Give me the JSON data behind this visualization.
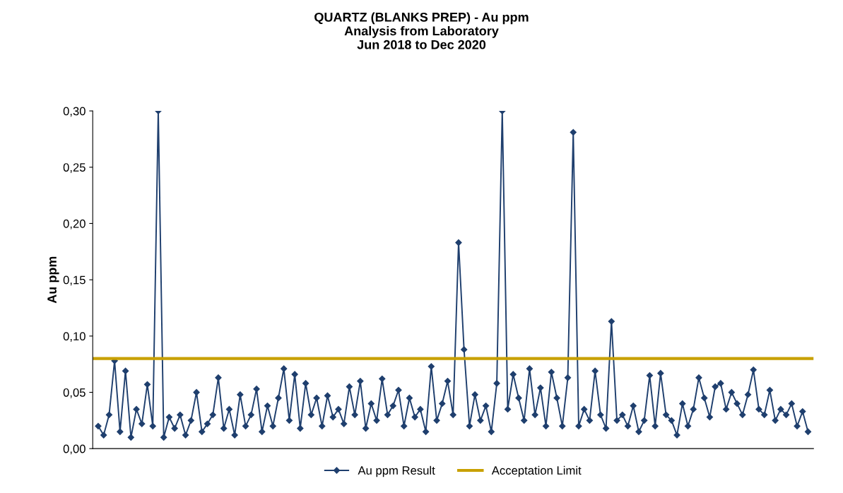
{
  "chart_data": {
    "type": "line",
    "title": "QUARTZ (BLANKS PREP) - Au ppm\nAnalysis from Laboratory\nJun 2018 to Dec 2020",
    "ylabel": "Au ppm",
    "categories": [
      null,
      null,
      null,
      null,
      null,
      null,
      null,
      null,
      null,
      null,
      null,
      null,
      null,
      null,
      null,
      null,
      null,
      null,
      null,
      null,
      null,
      null,
      null,
      null,
      null,
      null,
      null,
      null,
      null,
      null,
      null,
      null,
      null,
      null,
      null,
      null,
      null,
      null,
      null,
      null,
      null,
      null,
      null,
      null,
      null,
      null,
      null,
      null,
      null,
      null,
      null,
      null,
      null,
      null,
      null,
      null,
      null,
      null,
      null,
      null,
      null,
      null,
      null,
      null,
      null,
      null,
      null,
      null,
      null,
      null,
      null,
      null,
      null,
      null,
      null,
      null,
      null,
      null,
      null,
      null,
      null,
      null,
      null,
      null,
      null,
      null,
      null,
      null,
      null,
      null,
      null,
      null,
      null,
      null,
      null,
      null,
      null,
      null,
      null,
      null,
      null,
      null,
      null,
      null,
      null,
      null,
      null,
      null,
      null,
      null,
      null,
      null,
      null,
      null,
      null,
      null,
      null,
      null,
      null,
      null,
      null,
      null,
      null,
      null,
      null,
      null,
      null,
      null,
      null,
      null,
      null
    ],
    "series": [
      {
        "name": "Au ppm Result",
        "color": "#1f3f6e",
        "values": [
          0.02,
          0.012,
          0.03,
          0.078,
          0.015,
          0.069,
          0.01,
          0.035,
          0.022,
          0.057,
          0.02,
          0.3,
          0.01,
          0.028,
          0.018,
          0.03,
          0.012,
          0.025,
          0.05,
          0.015,
          0.022,
          0.03,
          0.063,
          0.018,
          0.035,
          0.012,
          0.048,
          0.02,
          0.03,
          0.053,
          0.015,
          0.038,
          0.02,
          0.045,
          0.071,
          0.025,
          0.066,
          0.018,
          0.058,
          0.03,
          0.045,
          0.02,
          0.047,
          0.028,
          0.035,
          0.022,
          0.055,
          0.03,
          0.06,
          0.018,
          0.04,
          0.025,
          0.062,
          0.03,
          0.038,
          0.052,
          0.02,
          0.045,
          0.028,
          0.035,
          0.015,
          0.073,
          0.025,
          0.04,
          0.06,
          0.03,
          0.183,
          0.088,
          0.02,
          0.048,
          0.025,
          0.038,
          0.015,
          0.058,
          0.3,
          0.035,
          0.066,
          0.045,
          0.025,
          0.071,
          0.03,
          0.054,
          0.02,
          0.068,
          0.045,
          0.02,
          0.063,
          0.281,
          0.02,
          0.035,
          0.025,
          0.069,
          0.03,
          0.018,
          0.113,
          0.025,
          0.03,
          0.02,
          0.038,
          0.015,
          0.025,
          0.065,
          0.02,
          0.067,
          0.03,
          0.025,
          0.012,
          0.04,
          0.02,
          0.035,
          0.063,
          0.045,
          0.028,
          0.055,
          0.058,
          0.035,
          0.05,
          0.04,
          0.03,
          0.048,
          0.07,
          0.035,
          0.03,
          0.052,
          0.025,
          0.035,
          0.03,
          0.04,
          0.02,
          0.033,
          0.015
        ]
      }
    ],
    "ref_lines": [
      {
        "axis": "y",
        "value": 0.08,
        "label": "Acceptation Limit",
        "color": "#c8a000"
      }
    ],
    "ylim": [
      0,
      0.3
    ],
    "yticks": [
      {
        "value": 0,
        "label": "0,00"
      },
      {
        "value": 0.05,
        "label": "0,05"
      },
      {
        "value": 0.1,
        "label": "0,10"
      },
      {
        "value": 0.15,
        "label": "0,15"
      },
      {
        "value": 0.2,
        "label": "0,20"
      },
      {
        "value": 0.25,
        "label": "0,25"
      },
      {
        "value": 0.3,
        "label": "0,30"
      }
    ],
    "marker": "diamond",
    "legend": "bottom",
    "grid": false
  }
}
